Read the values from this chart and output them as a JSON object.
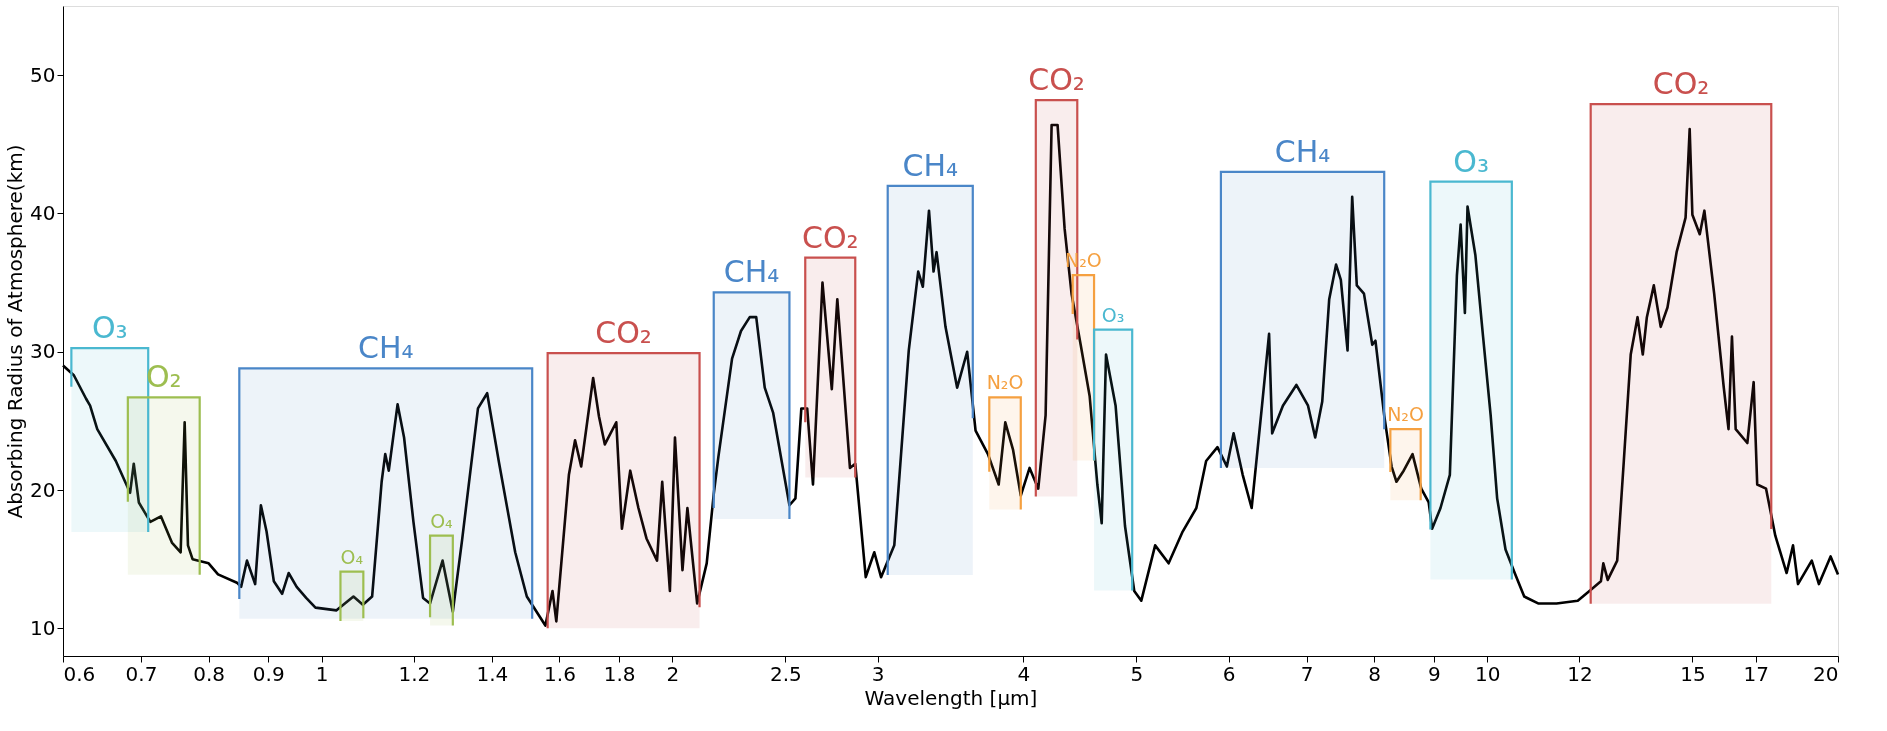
{
  "chart_data": {
    "type": "line",
    "xlabel": "Wavelength [μm]",
    "ylabel": "Absorbing Radius of Atmosphere(km)",
    "log": "x",
    "grid": false,
    "marker": "none",
    "line_style": "solid",
    "xlim": [
      0.6,
      20
    ],
    "xticks": [
      0.6,
      0.7,
      0.8,
      0.9,
      1,
      1.2,
      1.4,
      1.6,
      1.8,
      2,
      2.5,
      3,
      4,
      5,
      6,
      7,
      8,
      9,
      10,
      12,
      15,
      17,
      20
    ],
    "ylim": [
      8,
      55
    ],
    "yticks": [
      10,
      20,
      30,
      40,
      50
    ],
    "x": [
      0.6,
      0.613,
      0.628,
      0.633,
      0.642,
      0.666,
      0.685,
      0.69,
      0.697,
      0.713,
      0.728,
      0.744,
      0.757,
      0.763,
      0.768,
      0.775,
      0.8,
      0.815,
      0.846,
      0.853,
      0.863,
      0.877,
      0.887,
      0.897,
      0.91,
      0.925,
      0.937,
      0.952,
      0.97,
      0.988,
      1.03,
      1.065,
      1.085,
      1.105,
      1.126,
      1.134,
      1.142,
      1.162,
      1.177,
      1.199,
      1.222,
      1.239,
      1.27,
      1.296,
      1.32,
      1.362,
      1.387,
      1.419,
      1.466,
      1.5,
      1.556,
      1.578,
      1.59,
      1.63,
      1.65,
      1.67,
      1.71,
      1.73,
      1.75,
      1.79,
      1.81,
      1.84,
      1.87,
      1.9,
      1.94,
      1.96,
      1.99,
      2.01,
      2.04,
      2.06,
      2.1,
      2.14,
      2.17,
      2.19,
      2.25,
      2.29,
      2.33,
      2.36,
      2.4,
      2.44,
      2.52,
      2.55,
      2.58,
      2.61,
      2.64,
      2.69,
      2.74,
      2.77,
      2.84,
      2.87,
      2.93,
      2.98,
      3.02,
      3.1,
      3.19,
      3.25,
      3.28,
      3.32,
      3.35,
      3.37,
      3.43,
      3.51,
      3.58,
      3.64,
      3.73,
      3.81,
      3.86,
      3.92,
      3.98,
      4.05,
      4.12,
      4.18,
      4.23,
      4.28,
      4.34,
      4.4,
      4.48,
      4.56,
      4.63,
      4.67,
      4.71,
      4.8,
      4.89,
      4.98,
      5.05,
      5.19,
      5.33,
      5.48,
      5.63,
      5.74,
      5.87,
      5.98,
      6.06,
      6.17,
      6.28,
      6.41,
      6.5,
      6.54,
      6.68,
      6.86,
      7.02,
      7.12,
      7.22,
      7.32,
      7.42,
      7.49,
      7.59,
      7.66,
      7.73,
      7.84,
      7.97,
      8.02,
      8.16,
      8.28,
      8.36,
      8.48,
      8.63,
      8.78,
      8.91,
      8.97,
      9.12,
      9.29,
      9.42,
      9.49,
      9.57,
      9.62,
      9.77,
      9.92,
      10.07,
      10.2,
      10.37,
      10.56,
      10.76,
      11.06,
      11.47,
      11.96,
      12.24,
      12.52,
      12.58,
      12.69,
      12.93,
      13.1,
      13.28,
      13.46,
      13.6,
      13.71,
      13.9,
      14.09,
      14.28,
      14.54,
      14.8,
      14.92,
      15.0,
      15.22,
      15.36,
      15.66,
      15.96,
      16.11,
      16.22,
      16.34,
      16.72,
      16.93,
      17.05,
      17.35,
      17.67,
      18.07,
      18.3,
      18.48,
      18.99,
      19.26,
      19.71,
      20.0
    ],
    "series": [
      {
        "color": "#000000",
        "values": [
          29.0,
          28.3,
          26.6,
          26.1,
          24.4,
          22.1,
          19.8,
          21.9,
          19.1,
          17.7,
          18.1,
          16.2,
          15.5,
          24.9,
          16.0,
          15.0,
          14.7,
          13.9,
          13.3,
          13.0,
          14.9,
          13.2,
          18.9,
          17.0,
          13.4,
          12.5,
          14.0,
          13.0,
          12.2,
          11.5,
          11.3,
          12.3,
          11.7,
          12.3,
          20.6,
          22.6,
          21.4,
          26.2,
          23.8,
          17.7,
          12.2,
          11.8,
          14.9,
          11.2,
          16.4,
          25.9,
          27.0,
          22.1,
          15.5,
          12.3,
          10.2,
          12.7,
          10.5,
          21.1,
          23.6,
          21.7,
          28.1,
          25.3,
          23.3,
          24.9,
          17.2,
          21.4,
          18.7,
          16.5,
          14.9,
          20.6,
          12.7,
          23.8,
          14.2,
          18.7,
          11.8,
          14.7,
          19.7,
          22.4,
          29.5,
          31.5,
          32.5,
          32.5,
          27.4,
          25.6,
          18.9,
          19.4,
          25.9,
          25.9,
          20.4,
          35.0,
          27.3,
          33.8,
          21.6,
          21.9,
          13.7,
          15.5,
          13.7,
          16.0,
          30.1,
          35.8,
          34.7,
          40.2,
          35.8,
          37.2,
          31.8,
          27.4,
          30.0,
          24.3,
          22.6,
          20.4,
          24.9,
          22.9,
          19.6,
          21.6,
          20.1,
          25.4,
          46.4,
          46.4,
          38.9,
          34.2,
          30.5,
          26.8,
          20.4,
          17.6,
          29.8,
          26.1,
          17.4,
          12.7,
          12.0,
          16.0,
          14.7,
          17.0,
          18.7,
          22.1,
          23.1,
          21.7,
          24.1,
          21.1,
          18.7,
          26.1,
          31.3,
          24.1,
          26.1,
          27.6,
          26.1,
          23.8,
          26.4,
          33.8,
          36.3,
          35.2,
          30.1,
          41.2,
          34.8,
          34.2,
          30.5,
          30.8,
          25.4,
          21.7,
          20.6,
          21.4,
          22.6,
          20.1,
          19.1,
          17.2,
          18.7,
          21.1,
          35.5,
          39.2,
          32.8,
          40.5,
          37.0,
          31.1,
          25.4,
          19.4,
          15.7,
          14.0,
          12.3,
          11.8,
          11.8,
          12.0,
          12.7,
          13.4,
          14.7,
          13.5,
          14.9,
          22.1,
          29.8,
          32.5,
          29.8,
          32.5,
          34.8,
          31.8,
          33.2,
          37.2,
          39.7,
          46.1,
          39.9,
          38.5,
          40.2,
          34.2,
          27.4,
          24.4,
          31.1,
          24.4,
          23.4,
          27.8,
          20.4,
          20.1,
          16.7,
          14.0,
          16.0,
          13.2,
          14.9,
          13.2,
          15.2,
          13.9
        ]
      }
    ],
    "bands": [
      {
        "axis": "x",
        "from": 0.61,
        "to": 0.71,
        "label": "O₃",
        "color": "#4ab8d0"
      },
      {
        "axis": "x",
        "from": 0.682,
        "to": 0.786,
        "label": "O₂",
        "color": "#9dbe50"
      },
      {
        "axis": "x",
        "from": 0.85,
        "to": 1.516,
        "label": "CH₄",
        "color": "#4a86c8"
      },
      {
        "axis": "x",
        "from": 1.038,
        "to": 1.086,
        "label": "O₄",
        "color": "#9dbe50"
      },
      {
        "axis": "x",
        "from": 1.239,
        "to": 1.296,
        "label": "O₄",
        "color": "#9dbe50"
      },
      {
        "axis": "x",
        "from": 1.563,
        "to": 2.11,
        "label": "CO₂",
        "color": "#c9504e"
      },
      {
        "axis": "x",
        "from": 2.17,
        "to": 2.52,
        "label": "CH₄",
        "color": "#4a86c8"
      },
      {
        "axis": "x",
        "from": 2.6,
        "to": 2.87,
        "label": "CO₂",
        "color": "#c9504e"
      },
      {
        "axis": "x",
        "from": 3.06,
        "to": 3.62,
        "label": "CH₄",
        "color": "#4a86c8"
      },
      {
        "axis": "x",
        "from": 3.74,
        "to": 3.98,
        "label": "N₂O",
        "color": "#f5a040"
      },
      {
        "axis": "x",
        "from": 4.1,
        "to": 4.45,
        "label": "CO₂",
        "color": "#c9504e"
      },
      {
        "axis": "x",
        "from": 4.41,
        "to": 4.6,
        "label": "N₂O",
        "color": "#f5a040"
      },
      {
        "axis": "x",
        "from": 4.6,
        "to": 4.96,
        "label": "O₃",
        "color": "#4ab8d0"
      },
      {
        "axis": "x",
        "from": 5.91,
        "to": 8.16,
        "label": "CH₄",
        "color": "#4a86c8"
      },
      {
        "axis": "x",
        "from": 8.26,
        "to": 8.77,
        "label": "N₂O",
        "color": "#f5a040"
      },
      {
        "axis": "x",
        "from": 8.94,
        "to": 10.5,
        "label": "O₃",
        "color": "#4ab8d0"
      },
      {
        "axis": "x",
        "from": 12.27,
        "to": 17.53,
        "label": "CO₂",
        "color": "#c9504e"
      }
    ]
  }
}
